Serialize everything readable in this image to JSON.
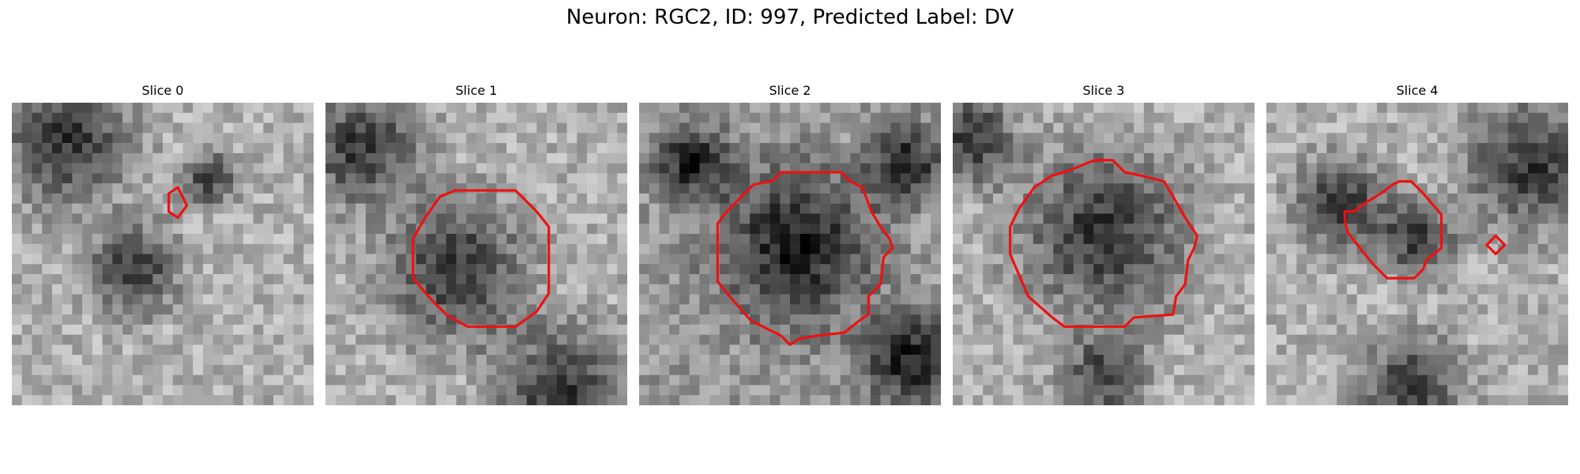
{
  "figure": {
    "title": "Neuron: RGC2, ID: 997, Predicted Label: DV"
  },
  "panels": [
    {
      "title": "Slice 0",
      "background": "bright",
      "dark_blobs": [
        [
          0.18,
          0.13,
          0.2
        ],
        [
          0.4,
          0.55,
          0.14
        ],
        [
          0.65,
          0.25,
          0.08
        ]
      ],
      "contours": [
        [
          [
            0.52,
            0.3
          ],
          [
            0.55,
            0.28
          ],
          [
            0.58,
            0.34
          ],
          [
            0.55,
            0.38
          ],
          [
            0.52,
            0.36
          ]
        ]
      ]
    },
    {
      "title": "Slice 1",
      "background": "bright",
      "dark_blobs": [
        [
          0.43,
          0.55,
          0.22
        ],
        [
          0.12,
          0.15,
          0.18
        ],
        [
          0.78,
          0.95,
          0.2
        ]
      ],
      "contours": [
        [
          [
            0.33,
            0.38
          ],
          [
            0.38,
            0.31
          ],
          [
            0.43,
            0.29
          ],
          [
            0.63,
            0.29
          ],
          [
            0.67,
            0.33
          ],
          [
            0.7,
            0.36
          ],
          [
            0.74,
            0.41
          ],
          [
            0.74,
            0.63
          ],
          [
            0.7,
            0.69
          ],
          [
            0.63,
            0.74
          ],
          [
            0.47,
            0.74
          ],
          [
            0.4,
            0.7
          ],
          [
            0.35,
            0.65
          ],
          [
            0.29,
            0.58
          ],
          [
            0.29,
            0.45
          ]
        ]
      ]
    },
    {
      "title": "Slice 2",
      "background": "mid",
      "dark_blobs": [
        [
          0.52,
          0.47,
          0.24
        ],
        [
          0.18,
          0.2,
          0.12
        ],
        [
          0.88,
          0.2,
          0.12
        ],
        [
          0.9,
          0.85,
          0.15
        ]
      ],
      "contours": [
        [
          [
            0.32,
            0.33
          ],
          [
            0.38,
            0.27
          ],
          [
            0.44,
            0.26
          ],
          [
            0.47,
            0.23
          ],
          [
            0.67,
            0.23
          ],
          [
            0.7,
            0.26
          ],
          [
            0.74,
            0.28
          ],
          [
            0.77,
            0.36
          ],
          [
            0.8,
            0.41
          ],
          [
            0.83,
            0.45
          ],
          [
            0.84,
            0.48
          ],
          [
            0.81,
            0.51
          ],
          [
            0.8,
            0.6
          ],
          [
            0.76,
            0.64
          ],
          [
            0.76,
            0.7
          ],
          [
            0.73,
            0.72
          ],
          [
            0.68,
            0.76
          ],
          [
            0.59,
            0.77
          ],
          [
            0.53,
            0.78
          ],
          [
            0.5,
            0.8
          ],
          [
            0.47,
            0.77
          ],
          [
            0.37,
            0.72
          ],
          [
            0.3,
            0.64
          ],
          [
            0.26,
            0.59
          ],
          [
            0.26,
            0.4
          ],
          [
            0.29,
            0.36
          ]
        ]
      ]
    },
    {
      "title": "Slice 3",
      "background": "bright",
      "dark_blobs": [
        [
          0.5,
          0.43,
          0.26
        ],
        [
          0.5,
          0.9,
          0.12
        ],
        [
          0.06,
          0.12,
          0.14
        ]
      ],
      "contours": [
        [
          [
            0.22,
            0.35
          ],
          [
            0.27,
            0.28
          ],
          [
            0.3,
            0.26
          ],
          [
            0.33,
            0.24
          ],
          [
            0.37,
            0.23
          ],
          [
            0.42,
            0.21
          ],
          [
            0.47,
            0.19
          ],
          [
            0.53,
            0.19
          ],
          [
            0.57,
            0.23
          ],
          [
            0.62,
            0.24
          ],
          [
            0.7,
            0.26
          ],
          [
            0.73,
            0.31
          ],
          [
            0.77,
            0.38
          ],
          [
            0.81,
            0.44
          ],
          [
            0.8,
            0.48
          ],
          [
            0.78,
            0.52
          ],
          [
            0.77,
            0.6
          ],
          [
            0.74,
            0.64
          ],
          [
            0.73,
            0.7
          ],
          [
            0.6,
            0.71
          ],
          [
            0.57,
            0.74
          ],
          [
            0.37,
            0.74
          ],
          [
            0.33,
            0.71
          ],
          [
            0.25,
            0.64
          ],
          [
            0.22,
            0.57
          ],
          [
            0.19,
            0.5
          ],
          [
            0.19,
            0.41
          ]
        ]
      ]
    },
    {
      "title": "Slice 4",
      "background": "bright",
      "dark_blobs": [
        [
          0.88,
          0.2,
          0.2
        ],
        [
          0.25,
          0.33,
          0.14
        ],
        [
          0.5,
          0.45,
          0.12
        ],
        [
          0.48,
          0.95,
          0.16
        ]
      ],
      "contours": [
        [
          [
            0.26,
            0.36
          ],
          [
            0.29,
            0.36
          ],
          [
            0.33,
            0.33
          ],
          [
            0.38,
            0.3
          ],
          [
            0.42,
            0.27
          ],
          [
            0.44,
            0.26
          ],
          [
            0.48,
            0.26
          ],
          [
            0.52,
            0.3
          ],
          [
            0.58,
            0.37
          ],
          [
            0.58,
            0.48
          ],
          [
            0.53,
            0.52
          ],
          [
            0.52,
            0.55
          ],
          [
            0.49,
            0.58
          ],
          [
            0.4,
            0.58
          ],
          [
            0.35,
            0.53
          ],
          [
            0.31,
            0.48
          ],
          [
            0.27,
            0.43
          ],
          [
            0.26,
            0.39
          ]
        ],
        [
          [
            0.73,
            0.47
          ],
          [
            0.76,
            0.44
          ],
          [
            0.79,
            0.47
          ],
          [
            0.76,
            0.5
          ]
        ]
      ]
    }
  ],
  "colors": {
    "contour": "#ee1111",
    "background": "#ffffff"
  }
}
